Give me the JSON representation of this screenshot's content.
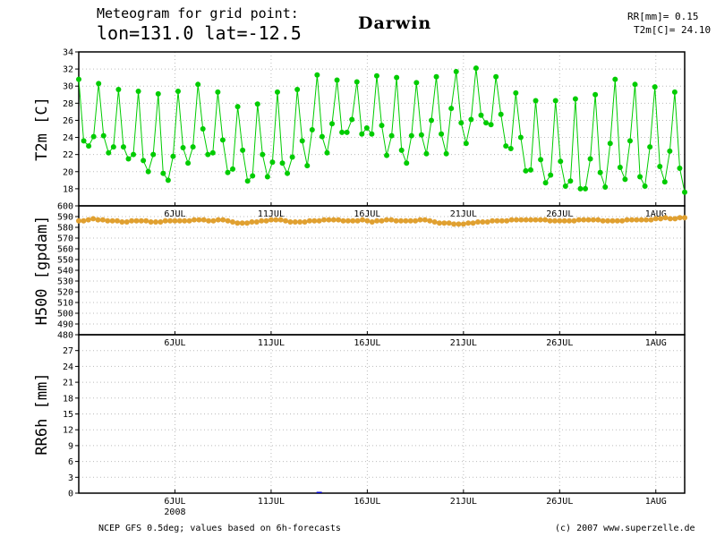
{
  "header": {
    "line1": "Meteogram for grid point:",
    "line2": "lon=131.0 lat=-12.5",
    "city": "Darwin",
    "stat1": "RR[mm]= 0.15",
    "stat2": "T2m[C]= 24.10"
  },
  "footer": {
    "source": "NCEP GFS 0.5deg; values based on 6h-forecasts",
    "copyright": "(c) 2007 www.superzelle.de"
  },
  "colors": {
    "t2m": "#00cc00",
    "h500": "#e0a030",
    "rr": "#0000cc",
    "grid": "#bbbbbb",
    "axis": "#000000"
  },
  "chart_data": [
    {
      "type": "line",
      "ylabel": "T2m [C]",
      "ylim": [
        16,
        34
      ],
      "yticks": [
        18,
        20,
        22,
        24,
        26,
        28,
        30,
        32,
        34
      ],
      "xlim": [
        0,
        31.5
      ],
      "x_tick_positions": [
        5,
        10,
        15,
        20,
        25,
        30
      ],
      "x_tick_labels": [
        "6JUL",
        "11JUL",
        "16JUL",
        "21JUL",
        "26JUL",
        "1AUG"
      ],
      "grid": true,
      "series": [
        {
          "values": [
            30.8,
            23.6,
            23.0,
            24.1,
            30.3,
            24.2,
            22.2,
            22.9,
            29.6,
            22.9,
            21.5,
            22.0,
            29.4,
            21.3,
            20.0,
            22.0,
            29.1,
            19.8,
            19.0,
            21.8,
            29.4,
            22.8,
            21.0,
            22.9,
            30.2,
            25.0,
            22.0,
            22.2,
            29.3,
            23.7,
            19.9,
            20.3,
            27.6,
            22.5,
            18.9,
            19.5,
            27.9,
            22.0,
            19.4,
            21.1,
            29.3,
            21.0,
            19.8,
            21.7,
            29.6,
            23.6,
            20.7,
            24.9,
            31.3,
            24.1,
            22.2,
            25.6,
            30.7,
            24.6,
            24.6,
            26.1,
            30.5,
            24.4,
            25.1,
            24.4,
            31.2,
            25.4,
            21.9,
            24.2,
            31.0,
            22.5,
            21.0,
            24.2,
            30.4,
            24.3,
            22.1,
            26.0,
            31.1,
            24.4,
            22.1,
            27.4,
            31.7,
            25.7,
            23.3,
            26.1,
            32.1,
            26.6,
            25.7,
            25.5,
            31.1,
            26.7,
            23.0,
            22.7,
            29.2,
            24.0,
            20.1,
            20.2,
            28.3,
            21.4,
            18.7,
            19.6,
            28.3,
            21.2,
            18.3,
            18.9,
            28.5,
            18.0,
            18.0,
            21.5,
            29.0,
            19.9,
            18.2,
            23.3,
            30.8,
            20.5,
            19.1,
            23.6,
            30.2,
            19.4,
            18.3,
            22.9,
            29.9,
            20.6,
            18.8,
            22.4,
            29.3,
            20.4,
            17.6
          ]
        }
      ]
    },
    {
      "type": "scatter",
      "ylabel": "H500 [gpdam]",
      "ylim": [
        480,
        600
      ],
      "yticks": [
        480,
        490,
        500,
        510,
        520,
        530,
        540,
        550,
        560,
        570,
        580,
        590,
        600
      ],
      "xlim": [
        0,
        31.5
      ],
      "x_tick_positions": [
        5,
        10,
        15,
        20,
        25,
        30
      ],
      "x_tick_labels": [
        "6JUL",
        "11JUL",
        "16JUL",
        "21JUL",
        "26JUL",
        "1AUG"
      ],
      "grid": true,
      "series": [
        {
          "values": [
            586,
            586,
            587,
            588,
            587,
            587,
            586,
            586,
            586,
            585,
            585,
            586,
            586,
            586,
            586,
            585,
            585,
            585,
            586,
            586,
            586,
            586,
            586,
            586,
            587,
            587,
            587,
            586,
            586,
            587,
            587,
            586,
            585,
            584,
            584,
            584,
            585,
            585,
            586,
            586,
            587,
            587,
            587,
            586,
            585,
            585,
            585,
            585,
            586,
            586,
            586,
            587,
            587,
            587,
            587,
            586,
            586,
            586,
            586,
            587,
            586,
            585,
            586,
            586,
            587,
            587,
            586,
            586,
            586,
            586,
            586,
            587,
            587,
            586,
            585,
            584,
            584,
            584,
            583,
            583,
            583,
            584,
            584,
            585,
            585,
            585,
            586,
            586,
            586,
            586,
            587,
            587,
            587,
            587,
            587,
            587,
            587,
            587,
            586,
            586,
            586,
            586,
            586,
            586,
            587,
            587,
            587,
            587,
            587,
            586,
            586,
            586,
            586,
            586,
            587,
            587,
            587,
            587,
            587,
            587,
            588,
            588,
            589,
            588,
            588,
            589,
            589
          ]
        }
      ]
    },
    {
      "type": "bar",
      "ylabel": "RR6h [mm]",
      "ylim": [
        0,
        30
      ],
      "yticks": [
        0,
        3,
        6,
        9,
        12,
        15,
        18,
        21,
        24,
        27
      ],
      "xlim": [
        0,
        31.5
      ],
      "x_tick_positions": [
        5,
        10,
        15,
        20,
        25,
        30
      ],
      "x_tick_labels": [
        "6JUL",
        "11JUL",
        "16JUL",
        "21JUL",
        "26JUL",
        "1AUG"
      ],
      "x_year_label": "2008",
      "x_year_position": 5,
      "grid": true,
      "series": [
        {
          "values": [
            [
              12.5,
              0.15
            ]
          ]
        }
      ]
    }
  ]
}
